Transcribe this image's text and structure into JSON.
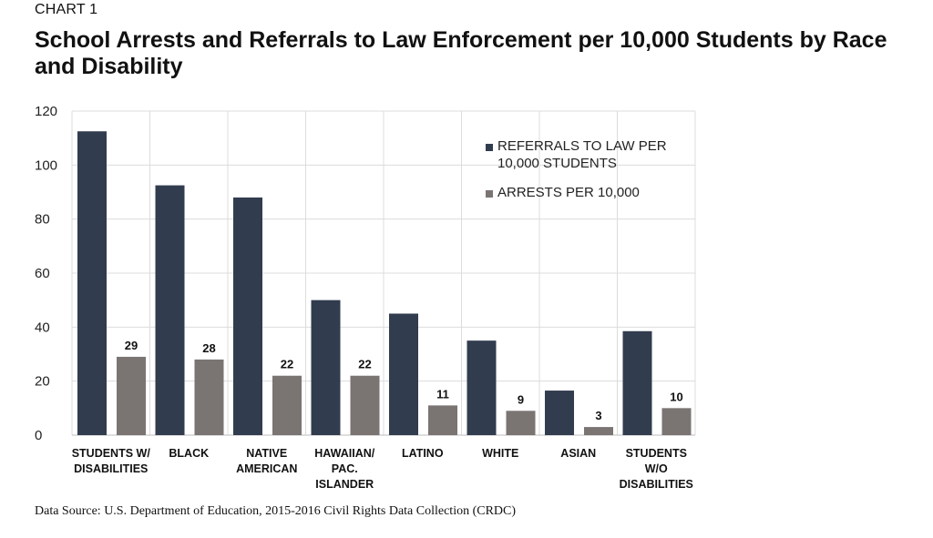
{
  "header": {
    "kicker": "CHART 1",
    "title": "School Arrests and Referrals to Law Enforcement per 10,000 Students by Race and Disability"
  },
  "footer": {
    "source": "Data Source: U.S. Department of Education, 2015-2016 Civil Rights Data Collection (CRDC)"
  },
  "colors": {
    "referrals": "#323c4f",
    "arrests": "#7a7473",
    "grid": "#dcdcdc"
  },
  "chart_data": {
    "type": "bar",
    "title": "School Arrests and Referrals to Law Enforcement per 10,000 Students by Race and Disability",
    "xlabel": "",
    "ylabel": "",
    "ylim": [
      0,
      120
    ],
    "yticks": [
      0,
      20,
      40,
      60,
      80,
      100,
      120
    ],
    "grid": true,
    "legend_position": "top-right",
    "categories": [
      [
        "STUDENTS W/",
        "DISABILITIES"
      ],
      [
        "BLACK"
      ],
      [
        "NATIVE",
        "AMERICAN"
      ],
      [
        "HAWAIIAN/",
        "PAC.",
        "ISLANDER"
      ],
      [
        "LATINO"
      ],
      [
        "WHITE"
      ],
      [
        "ASIAN"
      ],
      [
        "STUDENTS",
        "W/O",
        "DISABILITIES"
      ]
    ],
    "series": [
      {
        "name": "REFERRALS TO LAW PER 10,000 STUDENTS",
        "legend_lines": [
          "REFERRALS TO LAW PER",
          "10,000 STUDENTS"
        ],
        "values": [
          112.5,
          92.5,
          88,
          50,
          45,
          35,
          16.5,
          38.5
        ],
        "show_labels": false
      },
      {
        "name": "ARRESTS PER 10,000",
        "legend_lines": [
          "ARRESTS PER 10,000"
        ],
        "values": [
          29,
          28,
          22,
          22,
          11,
          9,
          3,
          10
        ],
        "show_labels": true
      }
    ]
  }
}
